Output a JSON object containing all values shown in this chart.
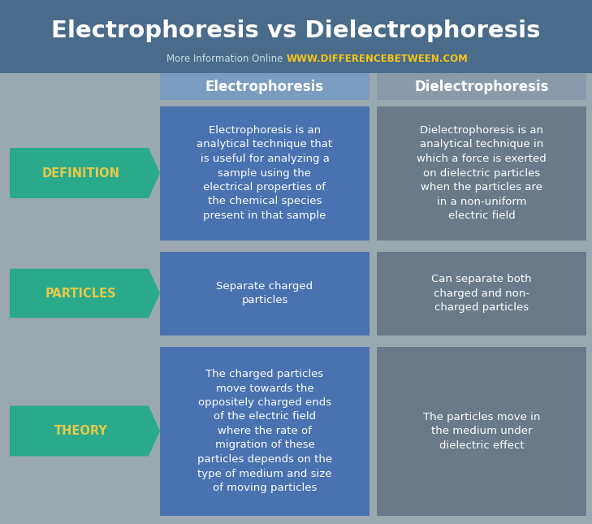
{
  "title": "Electrophoresis vs Dielectrophoresis",
  "subtitle_plain": "More Information Online",
  "subtitle_url": "WWW.DIFFERENCEBETWEEN.COM",
  "bg_color": "#9aa8b0",
  "header_bg": "#4a6b8a",
  "col1_header": "Electrophoresis",
  "col2_header": "Dielectrophoresis",
  "col1_header_bg": "#7a9cc0",
  "col2_header_bg": "#8a9aaa",
  "arrow_color": "#2aaa8a",
  "col1_bg": "#4a72b0",
  "col2_bg": "#6a7a88",
  "row_label_color": "#e8c84a",
  "subtitle_color": "#c8dde8",
  "url_color": "#f5c518",
  "rows": [
    {
      "label": "DEFINITION",
      "col1": "Electrophoresis is an\nanalytical technique that\nis useful for analyzing a\nsample using the\nelectrical properties of\nthe chemical species\npresent in that sample",
      "col2": "Dielectrophoresis is an\nanalytical technique in\nwhich a force is exerted\non dielectric particles\nwhen the particles are\nin a non-uniform\nelectric field"
    },
    {
      "label": "PARTICLES",
      "col1": "Separate charged\nparticles",
      "col2": "Can separate both\ncharged and non-\ncharged particles"
    },
    {
      "label": "THEORY",
      "col1": "The charged particles\nmove towards the\noppositely charged ends\nof the electric field\nwhere the rate of\nmigration of these\nparticles depends on the\ntype of medium and size\nof moving particles",
      "col2": "The particles move in\nthe medium under\ndielectric effect"
    }
  ]
}
